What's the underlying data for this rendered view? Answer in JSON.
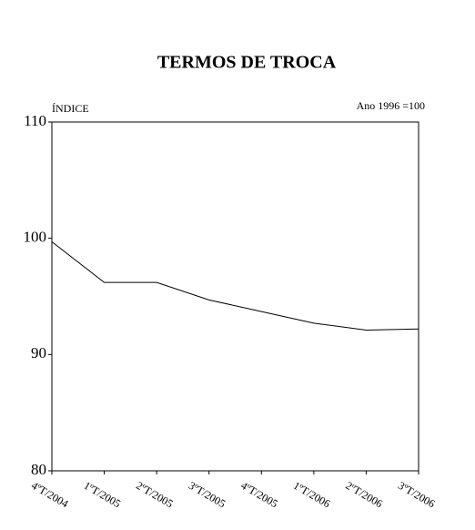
{
  "chart_data": {
    "type": "line",
    "title": "TERMOS DE TROCA",
    "y_label": "ÍNDICE",
    "annotation": "Ano 1996 =100",
    "categories": [
      "4ºT/2004",
      "1ºT/2005",
      "2ºT/2005",
      "3ºT/2005",
      "4ºT/2005",
      "1ºT/2006",
      "2ºT/2006",
      "3ºT/2006"
    ],
    "series": [
      {
        "name": "Termos de troca",
        "color": "#000000",
        "values": [
          99.7,
          96.2,
          96.2,
          94.7,
          93.7,
          92.7,
          92.1,
          92.2
        ]
      }
    ],
    "ylim": [
      80,
      110
    ],
    "yticks": [
      80,
      90,
      100,
      110
    ],
    "grid": false
  }
}
